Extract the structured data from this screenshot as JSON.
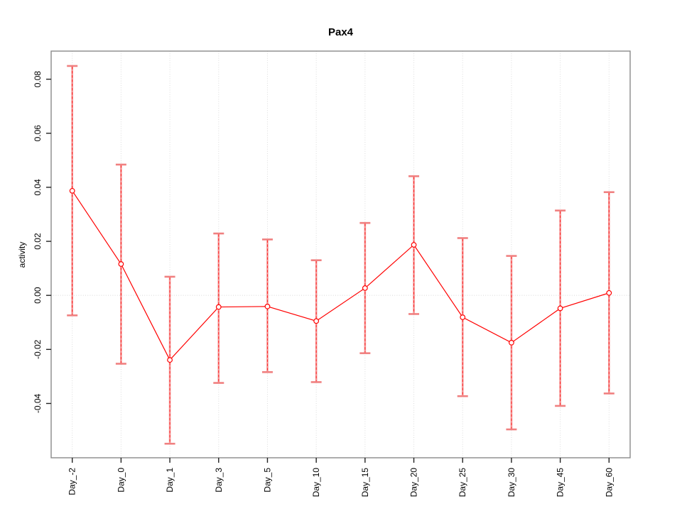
{
  "chart_data": {
    "type": "line",
    "title": "Pax4",
    "ylabel": "activity",
    "xlabel": "",
    "categories": [
      "Day_-2",
      "Day_0",
      "Day_1",
      "Day_3",
      "Day_5",
      "Day_10",
      "Day_15",
      "Day_20",
      "Day_25",
      "Day_30",
      "Day_45",
      "Day_60"
    ],
    "series": [
      {
        "name": "activity",
        "marker": "open-circle",
        "values": [
          0.0387,
          0.0116,
          -0.0239,
          -0.0043,
          -0.0041,
          -0.0095,
          0.0027,
          0.0187,
          -0.0081,
          -0.0175,
          -0.0048,
          0.0009
        ],
        "error_upper": [
          0.0849,
          0.0484,
          0.0069,
          0.0229,
          0.0207,
          0.013,
          0.0268,
          0.0441,
          0.0212,
          0.0146,
          0.0314,
          0.0382
        ],
        "error_lower": [
          -0.0074,
          -0.0253,
          -0.0549,
          -0.0324,
          -0.0284,
          -0.0321,
          -0.0214,
          -0.0069,
          -0.0373,
          -0.0496,
          -0.0409,
          -0.0363
        ]
      }
    ],
    "ylim": [
      -0.0601,
      0.0904
    ],
    "yticks": [
      -0.04,
      -0.02,
      0,
      0.02,
      0.04,
      0.06,
      0.08
    ],
    "ytick_labels": [
      "-0.04",
      "-0.02",
      "0.00",
      "0.02",
      "0.04",
      "0.06",
      "0.08"
    ],
    "grid": {
      "vertical": "dotted line at every category",
      "horizontal": "dotted line at y=0"
    },
    "legend": "none",
    "colors": {
      "line": "#ff0000",
      "marker_stroke": "#ff0000",
      "marker_fill": "#ffffff",
      "errorbar_stem": "#f59898",
      "errorbar_cap": "#f08080",
      "errorbar_dash": "#ff2020",
      "gridline": "#dcdcdc",
      "zero_line": "#d8d8d8",
      "box": "#8a8a8a",
      "tick": "#222222",
      "text": "#000000",
      "background": "#ffffff"
    }
  }
}
